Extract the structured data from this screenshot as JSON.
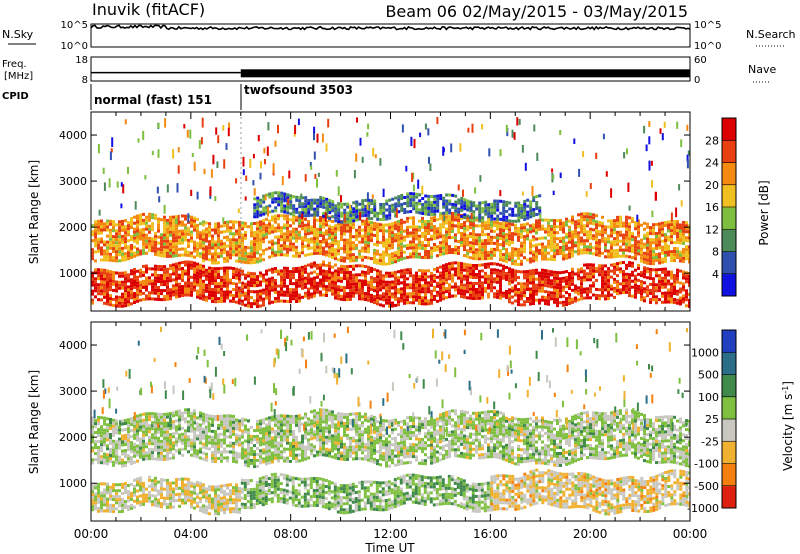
{
  "header": {
    "station": "Inuvik (fitACF)",
    "beam_range": "Beam 06 02/May/2015 - 03/May/2015"
  },
  "panels": {
    "nsky": {
      "left_label": "N.Sky",
      "left_ticks": [
        "10^5",
        "10^0"
      ],
      "right_label": "N.Search",
      "right_ticks": [
        "10^5",
        "10^0"
      ],
      "level": 0.82,
      "line_color": "#000000"
    },
    "freq": {
      "left_label_1": "Freq.",
      "left_label_2": "[MHz]",
      "left_ticks": [
        "18",
        "8"
      ],
      "right_label": "Nave",
      "right_ticks": [
        "60",
        "0"
      ],
      "level_normal": 0.35,
      "level_twofsound": 0.32
    },
    "cpid": {
      "label": "CPID",
      "segments": [
        {
          "name": "normal (fast) 151",
          "start_hour": 0,
          "end_hour": 6
        },
        {
          "name": "twofsound 3503",
          "start_hour": 6,
          "end_hour": 24
        }
      ]
    }
  },
  "chart_data": [
    {
      "type": "heatmap",
      "name": "power",
      "xlabel": "",
      "ylabel": "Slant Range [km]",
      "xlim": [
        0,
        24
      ],
      "ylim": [
        180,
        4500
      ],
      "yticks": [
        1000,
        2000,
        3000,
        4000
      ],
      "colorbar": {
        "label": "Power [dB]",
        "ticks": [
          "4",
          "8",
          "12",
          "16",
          "20",
          "24",
          "28"
        ],
        "range": [
          0,
          30
        ],
        "colors": [
          "#1010e0",
          "#3050b0",
          "#4d8a5a",
          "#7fbf3f",
          "#f0c020",
          "#f58a10",
          "#e84010",
          "#dd0000"
        ]
      },
      "bands": [
        {
          "x": [
            0,
            24
          ],
          "y": [
            400,
            1150
          ],
          "value": 26
        },
        {
          "x": [
            0,
            24
          ],
          "y": [
            1350,
            2200
          ],
          "value": 20
        },
        {
          "x": [
            6.5,
            18
          ],
          "y": [
            2200,
            2650
          ],
          "value": 8
        }
      ]
    },
    {
      "type": "heatmap",
      "name": "velocity",
      "xlabel": "Time UT",
      "ylabel": "Slant Range [km]",
      "xlim": [
        0,
        24
      ],
      "ylim": [
        180,
        4500
      ],
      "xticks": [
        "00:00",
        "04:00",
        "08:00",
        "12:00",
        "16:00",
        "20:00",
        "00:00"
      ],
      "yticks": [
        1000,
        2000,
        3000,
        4000
      ],
      "colorbar": {
        "label": "Velocity [m s",
        "label_sup": "-1",
        "label_end": "]",
        "ticks": [
          "1000",
          "500",
          "100",
          "25",
          "-25",
          "-100",
          "-500",
          "-1000"
        ],
        "range": [
          -1200,
          1200
        ],
        "colors": [
          "#2040c0",
          "#2c6e88",
          "#3f8a4a",
          "#7fc040",
          "#c8c8c0",
          "#f0b030",
          "#f58010",
          "#dd2010"
        ]
      },
      "bands": [
        {
          "x": [
            0,
            24
          ],
          "y": [
            1500,
            2500
          ],
          "value": 0
        },
        {
          "x": [
            0,
            6
          ],
          "y": [
            450,
            1050
          ],
          "value": -200
        },
        {
          "x": [
            6,
            16
          ],
          "y": [
            500,
            1100
          ],
          "value": 150
        },
        {
          "x": [
            16,
            24
          ],
          "y": [
            450,
            1200
          ],
          "value": -300
        }
      ]
    }
  ]
}
